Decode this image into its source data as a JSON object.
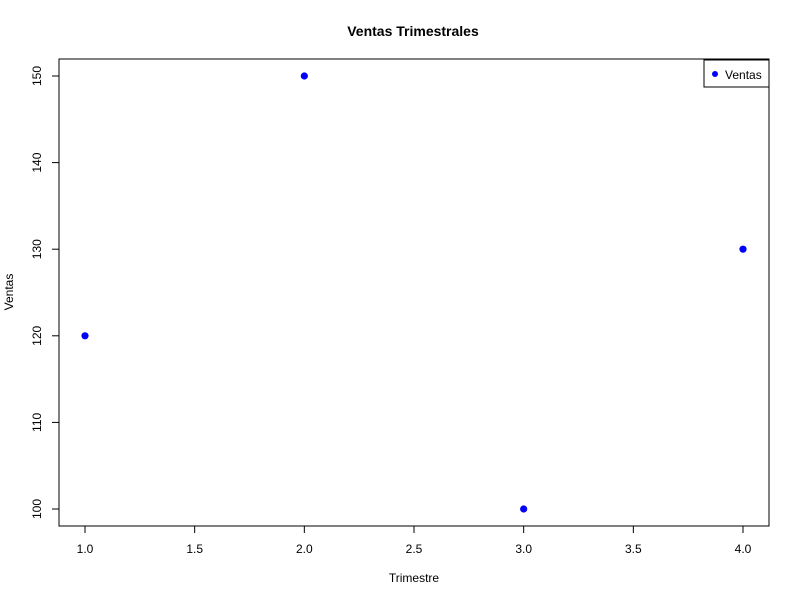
{
  "chart_data": {
    "type": "scatter",
    "title": "Ventas Trimestrales",
    "xlabel": "Trimestre",
    "ylabel": "Ventas",
    "xlim": [
      1.0,
      4.0
    ],
    "ylim": [
      100,
      150
    ],
    "x_ticks": [
      "1.0",
      "1.5",
      "2.0",
      "2.5",
      "3.0",
      "3.5",
      "4.0"
    ],
    "y_ticks": [
      "100",
      "110",
      "120",
      "130",
      "140",
      "150"
    ],
    "grid": false,
    "legend_position": "top-right",
    "series": [
      {
        "name": "Ventas",
        "color": "#0000ff",
        "x": [
          1,
          2,
          3,
          4
        ],
        "y": [
          120,
          150,
          100,
          130
        ]
      }
    ]
  }
}
